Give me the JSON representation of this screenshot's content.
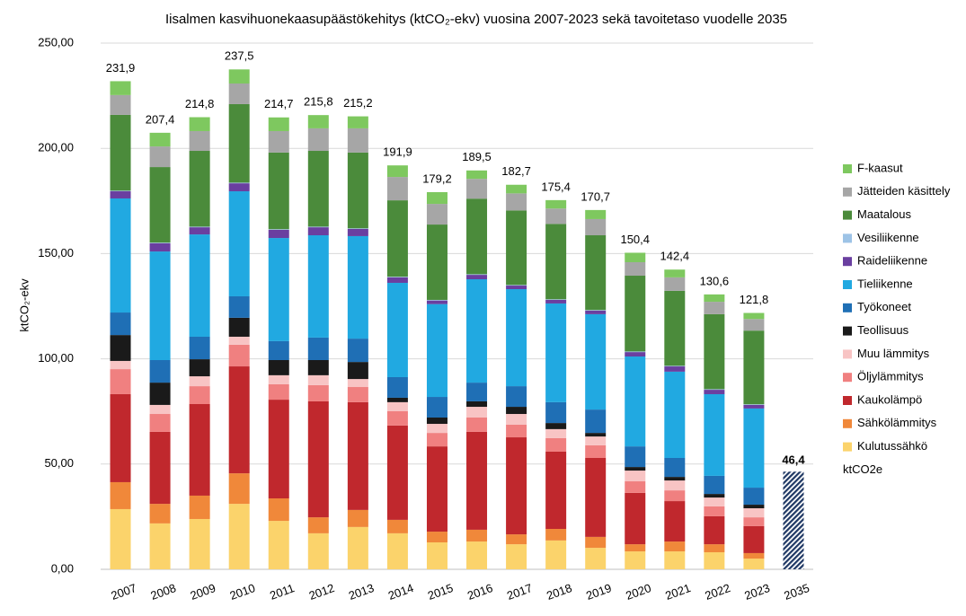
{
  "chart_data": {
    "type": "stacked_bar",
    "title": "Iisalmen kasvihuonekaasupäästökehitys (ktCO₂-ekv) vuosina 2007-2023 sekä tavoitetaso vuodelle 2035",
    "y_label": "ktCO₂-ekv",
    "categories": [
      "2007",
      "2008",
      "2009",
      "2010",
      "2011",
      "2012",
      "2013",
      "2014",
      "2015",
      "2016",
      "2017",
      "2018",
      "2019",
      "2020",
      "2021",
      "2022",
      "2023",
      "2035"
    ],
    "ylim": [
      0,
      250
    ],
    "yticks": [
      {
        "value": 0,
        "label": "0,00"
      },
      {
        "value": 50,
        "label": "50,00"
      },
      {
        "value": 100,
        "label": "100,00"
      },
      {
        "value": 150,
        "label": "150,00"
      },
      {
        "value": 200,
        "label": "200,00"
      },
      {
        "value": 250,
        "label": "250,00"
      }
    ],
    "grid": true,
    "legend": "right",
    "totals": [
      231.9,
      207.4,
      214.8,
      237.5,
      214.7,
      215.8,
      215.2,
      191.9,
      179.2,
      189.5,
      182.7,
      175.4,
      170.7,
      150.4,
      142.4,
      130.6,
      121.8,
      null
    ],
    "total_labels": [
      "231,9",
      "207,4",
      "214,8",
      "237,5",
      "214,7",
      "215,8",
      "215,2",
      "191,9",
      "179,2",
      "189,5",
      "182,7",
      "175,4",
      "170,7",
      "150,4",
      "142,4",
      "130,6",
      "121,8",
      null
    ],
    "series": [
      {
        "name": "ktCO2e",
        "color": "#1f3864",
        "hatch": true,
        "values": [
          null,
          null,
          null,
          null,
          null,
          null,
          null,
          null,
          null,
          null,
          null,
          null,
          null,
          null,
          null,
          null,
          null,
          46.4
        ],
        "value_labels": [
          null,
          null,
          null,
          null,
          null,
          null,
          null,
          null,
          null,
          null,
          null,
          null,
          null,
          null,
          null,
          null,
          null,
          "46,4"
        ]
      },
      {
        "name": "Kulutussähkö",
        "color": "#fbd36b",
        "values": [
          28.6,
          21.8,
          23.9,
          31.1,
          23,
          17.1,
          20.1,
          17.1,
          12.8,
          13.2,
          11.9,
          13.7,
          10.2,
          8.5,
          8.5,
          8.1,
          5.1,
          null
        ]
      },
      {
        "name": "Sähkölämmitys",
        "color": "#f0883a",
        "values": [
          12.8,
          9.3,
          11.1,
          14.5,
          10.7,
          7.6,
          8.1,
          6.4,
          5.1,
          5.6,
          4.7,
          5.5,
          5.2,
          3.4,
          4.7,
          3.8,
          2.6,
          null
        ]
      },
      {
        "name": "Kaukolämpö",
        "color": "#c0282d",
        "values": [
          41.8,
          34.2,
          43.5,
          50.8,
          46.9,
          55.1,
          51.2,
          44.8,
          40.5,
          46.5,
          46.1,
          36.7,
          37.5,
          24.4,
          19.2,
          13.3,
          12.8,
          null
        ]
      },
      {
        "name": "Öljylämmitys",
        "color": "#f08080",
        "values": [
          11.9,
          8.5,
          8.5,
          10.3,
          7.3,
          7.7,
          7.2,
          6.8,
          6.4,
          6.8,
          6,
          6.4,
          6,
          5.5,
          5.1,
          4.7,
          4.2,
          null
        ]
      },
      {
        "name": "Muu lämmitys",
        "color": "#f8c4c4",
        "values": [
          3.9,
          4.3,
          4.7,
          3.8,
          4.3,
          4.7,
          3.8,
          4.3,
          4.3,
          5.1,
          5.1,
          4.3,
          4.2,
          5.1,
          4.7,
          4.2,
          4.3,
          null
        ]
      },
      {
        "name": "Teollisuus",
        "color": "#1a1a1a",
        "values": [
          12.3,
          10.6,
          8.1,
          9,
          7.2,
          7.2,
          8.1,
          2.1,
          3,
          2.6,
          3.4,
          2.9,
          1.7,
          1.7,
          1.7,
          1.7,
          1.7,
          null
        ]
      },
      {
        "name": "Työkoneet",
        "color": "#1f6fb5",
        "values": [
          10.7,
          10.7,
          10.7,
          10.2,
          9,
          10.7,
          11.1,
          9.8,
          9.8,
          8.9,
          9.8,
          9.9,
          11.1,
          9.8,
          9,
          8.6,
          8.1,
          null
        ]
      },
      {
        "name": "Tieliikenne",
        "color": "#21a9e1",
        "values": [
          54.2,
          51.6,
          48.6,
          49.9,
          49,
          48.6,
          48.7,
          44.8,
          44.1,
          49.1,
          46.1,
          46.9,
          45.3,
          42.7,
          41,
          38.8,
          37.6,
          null
        ]
      },
      {
        "name": "Raideliikenne",
        "color": "#6a3fa0",
        "values": [
          3.4,
          3.9,
          3.4,
          3.8,
          3.9,
          3.8,
          3.4,
          2.6,
          1.7,
          2.1,
          1.7,
          1.7,
          1.7,
          2.1,
          2.5,
          2.1,
          1.7,
          null
        ]
      },
      {
        "name": "Vesiliikenne",
        "color": "#9dc3e6",
        "values": [
          0.3,
          0.3,
          0.3,
          0.3,
          0.3,
          0.3,
          0.3,
          0.3,
          0.3,
          0.3,
          0.3,
          0.3,
          0.3,
          0.3,
          0.3,
          0.3,
          0.3,
          null
        ]
      },
      {
        "name": "Maatalous",
        "color": "#4b8b3b",
        "values": [
          36,
          35.9,
          36,
          37.3,
          36.4,
          36,
          36,
          36.3,
          35.8,
          35.9,
          35.4,
          35.8,
          35.5,
          36,
          35.6,
          35.6,
          35,
          null
        ]
      },
      {
        "name": "Jätteiden käsittely",
        "color": "#a6a6a6",
        "values": [
          9.4,
          9.8,
          9.4,
          9.8,
          10.2,
          10.7,
          11.5,
          11.1,
          9.8,
          9.4,
          8.1,
          7.3,
          7.7,
          6.4,
          6.4,
          5.9,
          5.5,
          null
        ]
      },
      {
        "name": "F-kaasut",
        "color": "#7ec85f",
        "values": [
          6.6,
          6.5,
          6.6,
          6.7,
          6.5,
          6.3,
          5.7,
          5.5,
          5.6,
          4.0,
          4.1,
          4.0,
          4.3,
          4.5,
          3.7,
          3.5,
          2.9,
          null
        ]
      }
    ]
  }
}
